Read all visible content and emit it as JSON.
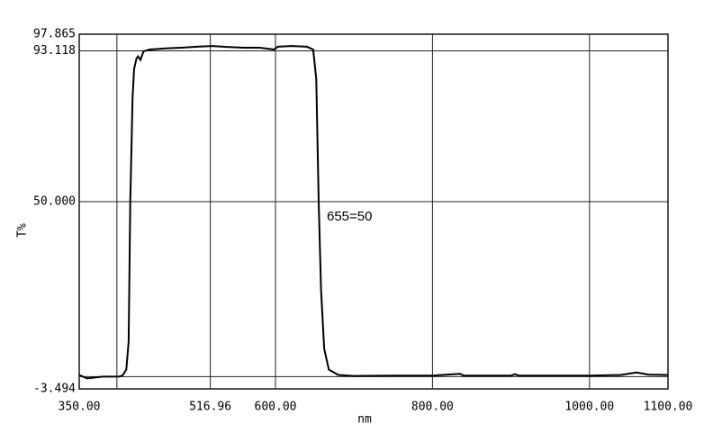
{
  "chart_data": {
    "type": "line",
    "x_label": "nm",
    "y_label": "T%",
    "annotation": "655=50",
    "color": "#000000",
    "grid": true,
    "x": [
      350,
      360,
      380,
      400,
      405,
      410,
      413,
      415,
      418,
      420,
      423,
      425,
      428,
      432,
      440,
      460,
      480,
      500,
      520,
      540,
      560,
      580,
      598,
      603,
      620,
      640,
      648,
      652,
      655,
      658,
      662,
      668,
      680,
      700,
      750,
      800,
      835,
      840,
      900,
      905,
      910,
      960,
      1000,
      1040,
      1060,
      1075,
      1100
    ],
    "values": [
      0.5,
      -0.5,
      0,
      0,
      0.3,
      2,
      10,
      50,
      80,
      88,
      91,
      91.5,
      90.5,
      93,
      93.5,
      93.8,
      94,
      94.3,
      94.5,
      94.2,
      94,
      94,
      93.5,
      94.3,
      94.5,
      94.3,
      93.5,
      85,
      50,
      25,
      8,
      2,
      0.5,
      0.2,
      0.3,
      0.3,
      0.8,
      0.3,
      0.3,
      0.7,
      0.3,
      0.3,
      0.3,
      0.5,
      1.2,
      0.6,
      0.5
    ],
    "xlim": [
      350,
      1100
    ],
    "xticks": [
      {
        "value": 350,
        "label": "350.00"
      },
      {
        "value": 398,
        "label": null
      },
      516.96,
      {
        "value": 600,
        "label": "600.00"
      },
      {
        "value": 800,
        "label": "800.00"
      },
      {
        "value": 1000,
        "label": "1000.00"
      },
      {
        "value": 1100,
        "label": "1100.00"
      }
    ],
    "ylim": [
      -3.494,
      97.865
    ],
    "yticks": [
      -3.494,
      {
        "value": 0,
        "label": null
      },
      {
        "value": 50,
        "label": "50.000"
      },
      93.118,
      97.865
    ]
  }
}
